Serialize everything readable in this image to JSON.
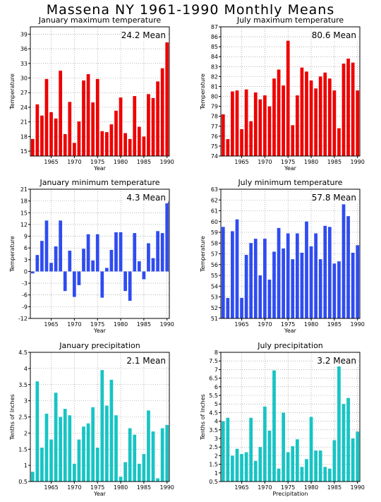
{
  "title": "Massena NY   1961-1990 Monthly Means",
  "colors": {
    "temperature_max": "#ee0000",
    "temperature_min": "#2f4cf0",
    "precipitation": "#18c4c4"
  },
  "chart_data": [
    {
      "type": "bar",
      "title": "January maximum temperature",
      "annotation": "24.2 Mean",
      "xlabel": "Year",
      "ylabel": "Temperature",
      "ylim": [
        14,
        40.5
      ],
      "yticks": [
        "15",
        "18",
        "21",
        "24",
        "27",
        "30",
        "33",
        "36",
        "39"
      ],
      "xticks": [
        "1965",
        "1970",
        "1975",
        "1980",
        "1985",
        "1990"
      ],
      "x": [
        1961,
        1962,
        1963,
        1964,
        1965,
        1966,
        1967,
        1968,
        1969,
        1970,
        1971,
        1972,
        1973,
        1974,
        1975,
        1976,
        1977,
        1978,
        1979,
        1980,
        1981,
        1982,
        1983,
        1984,
        1985,
        1986,
        1987,
        1988,
        1989,
        1990
      ],
      "values": [
        17.5,
        24.6,
        22.3,
        29.8,
        23.0,
        21.7,
        31.5,
        18.5,
        25.1,
        16.7,
        21.1,
        29.5,
        30.8,
        25.0,
        29.8,
        19.1,
        18.9,
        20.5,
        23.3,
        26.0,
        18.7,
        17.5,
        26.3,
        20.0,
        18.0,
        26.7,
        25.9,
        29.3,
        32.0,
        37.3
      ],
      "grid": true
    },
    {
      "type": "bar",
      "title": "July maximum temperature",
      "annotation": "80.6 Mean",
      "xlabel": "Year",
      "ylabel": "Temperature",
      "ylim": [
        74,
        87
      ],
      "yticks": [
        "74",
        "75",
        "76",
        "77",
        "78",
        "79",
        "80",
        "81",
        "82",
        "83",
        "84",
        "85",
        "86",
        "87"
      ],
      "xticks": [
        "1965",
        "1970",
        "1975",
        "1980",
        "1985",
        "1990"
      ],
      "x": [
        1961,
        1962,
        1963,
        1964,
        1965,
        1966,
        1967,
        1968,
        1969,
        1970,
        1971,
        1972,
        1973,
        1974,
        1975,
        1976,
        1977,
        1978,
        1979,
        1980,
        1981,
        1982,
        1983,
        1984,
        1985,
        1986,
        1987,
        1988,
        1989,
        1990
      ],
      "values": [
        78.2,
        75.7,
        80.5,
        80.6,
        76.7,
        80.7,
        77.5,
        80.4,
        79.7,
        80.1,
        79.0,
        81.8,
        82.7,
        81.1,
        85.6,
        77.1,
        80.1,
        82.9,
        82.5,
        81.6,
        80.8,
        82.0,
        82.4,
        81.8,
        80.6,
        76.8,
        83.3,
        83.8,
        83.4,
        80.6
      ],
      "grid": true
    },
    {
      "type": "bar",
      "title": "January minimum temperature",
      "annotation": "4.3 Mean",
      "xlabel": "Year",
      "ylabel": "Temperature",
      "ylim": [
        -12,
        21
      ],
      "yticks": [
        "-12",
        "-9",
        "-6",
        "-3",
        "0",
        "3",
        "6",
        "9",
        "12",
        "15",
        "18",
        "21"
      ],
      "xticks": [
        "1965",
        "1970",
        "1975",
        "1980",
        "1985",
        "1990"
      ],
      "x": [
        1961,
        1962,
        1963,
        1964,
        1965,
        1966,
        1967,
        1968,
        1969,
        1970,
        1971,
        1972,
        1973,
        1974,
        1975,
        1976,
        1977,
        1978,
        1979,
        1980,
        1981,
        1982,
        1983,
        1984,
        1985,
        1986,
        1987,
        1988,
        1989,
        1990
      ],
      "values": [
        -0.5,
        4.2,
        7.8,
        13.0,
        2.2,
        6.4,
        13.0,
        -5.0,
        5.3,
        -6.5,
        -3.5,
        5.8,
        9.5,
        2.8,
        9.5,
        -6.7,
        0.9,
        5.5,
        10.0,
        10.0,
        -5.0,
        -7.5,
        9.8,
        2.6,
        -2.0,
        7.2,
        3.4,
        10.3,
        9.8,
        17.8
      ],
      "grid": true
    },
    {
      "type": "bar",
      "title": "July minimum temperature",
      "annotation": "57.8 Mean",
      "xlabel": "Year",
      "ylabel": "Temperature",
      "ylim": [
        51,
        63
      ],
      "yticks": [
        "51",
        "52",
        "53",
        "54",
        "55",
        "56",
        "57",
        "58",
        "59",
        "60",
        "61",
        "62",
        "63"
      ],
      "xticks": [
        "1965",
        "1970",
        "1975",
        "1980",
        "1985",
        "1990"
      ],
      "x": [
        1961,
        1962,
        1963,
        1964,
        1965,
        1966,
        1967,
        1968,
        1969,
        1970,
        1971,
        1972,
        1973,
        1974,
        1975,
        1976,
        1977,
        1978,
        1979,
        1980,
        1981,
        1982,
        1983,
        1984,
        1985,
        1986,
        1987,
        1988,
        1989,
        1990
      ],
      "values": [
        59.5,
        52.9,
        59.1,
        60.2,
        52.9,
        56.9,
        58.0,
        58.4,
        55.0,
        58.4,
        54.6,
        57.2,
        59.4,
        57.5,
        58.9,
        56.5,
        58.9,
        57.1,
        60.0,
        57.7,
        58.9,
        56.5,
        59.6,
        59.5,
        56.1,
        56.3,
        61.6,
        60.5,
        57.1,
        57.8
      ],
      "grid": true
    },
    {
      "type": "bar",
      "title": "January precipitation",
      "annotation": "2.1 Mean",
      "xlabel": "Year",
      "ylabel": "Tenths of Inches",
      "ylim": [
        0.5,
        4.5
      ],
      "yticks": [
        "0.5",
        "1",
        "1.5",
        "2",
        "2.5",
        "3",
        "3.5",
        "4",
        "4.5"
      ],
      "xticks": [
        "1965",
        "1970",
        "1975",
        "1980",
        "1985",
        "1990"
      ],
      "x": [
        1961,
        1962,
        1963,
        1964,
        1965,
        1966,
        1967,
        1968,
        1969,
        1970,
        1971,
        1972,
        1973,
        1974,
        1975,
        1976,
        1977,
        1978,
        1979,
        1980,
        1981,
        1982,
        1983,
        1984,
        1985,
        1986,
        1987,
        1988,
        1989,
        1990
      ],
      "values": [
        0.8,
        3.6,
        1.55,
        2.6,
        1.8,
        3.25,
        2.5,
        2.75,
        2.55,
        1.05,
        1.8,
        2.2,
        2.3,
        2.8,
        1.55,
        3.95,
        2.85,
        3.65,
        2.55,
        0.65,
        1.1,
        2.15,
        1.95,
        1.05,
        1.35,
        2.7,
        2.05,
        0.6,
        2.15,
        2.25
      ],
      "grid": true
    },
    {
      "type": "bar",
      "title": "July precipitation",
      "annotation": "3.2 Mean",
      "xlabel": "Precipitation",
      "ylabel": "Tenths of Inches",
      "ylim": [
        0.5,
        8
      ],
      "yticks": [
        "0.5",
        "1",
        "1.5",
        "2",
        "2.5",
        "3",
        "3.5",
        "4",
        "4.5",
        "5",
        "5.5",
        "6",
        "6.5",
        "7",
        "7.5",
        "8"
      ],
      "xticks": [
        "1965",
        "1970",
        "1975",
        "1980",
        "1985",
        "1990"
      ],
      "x": [
        1961,
        1962,
        1963,
        1964,
        1965,
        1966,
        1967,
        1968,
        1969,
        1970,
        1971,
        1972,
        1973,
        1974,
        1975,
        1976,
        1977,
        1978,
        1979,
        1980,
        1981,
        1982,
        1983,
        1984,
        1985,
        1986,
        1987,
        1988,
        1989,
        1990
      ],
      "values": [
        4.0,
        4.2,
        2.0,
        2.4,
        2.1,
        2.2,
        4.2,
        1.7,
        2.5,
        4.85,
        3.45,
        6.95,
        1.25,
        4.5,
        2.2,
        2.55,
        2.95,
        1.35,
        1.8,
        4.25,
        2.3,
        2.3,
        1.35,
        1.25,
        2.9,
        7.2,
        5.0,
        5.35,
        3.0,
        3.4
      ],
      "grid": true
    }
  ]
}
